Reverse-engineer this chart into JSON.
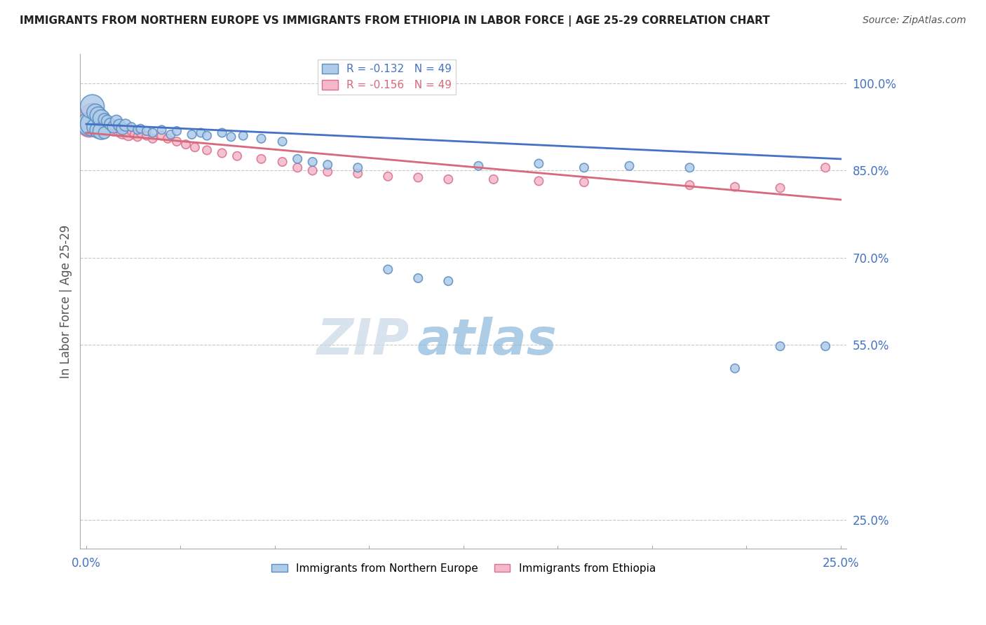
{
  "title": "IMMIGRANTS FROM NORTHERN EUROPE VS IMMIGRANTS FROM ETHIOPIA IN LABOR FORCE | AGE 25-29 CORRELATION CHART",
  "source": "Source: ZipAtlas.com",
  "ylabel": "In Labor Force | Age 25-29",
  "watermark": "ZIPatlas",
  "legend_blue_R": "-0.132",
  "legend_blue_N": "49",
  "legend_pink_R": "-0.156",
  "legend_pink_N": "49",
  "legend_blue_label": "Immigrants from Northern Europe",
  "legend_pink_label": "Immigrants from Ethiopia",
  "blue_face": "#aecce8",
  "blue_edge": "#5b8ec4",
  "pink_face": "#f4b8c8",
  "pink_edge": "#d97090",
  "blue_line": "#4472c4",
  "pink_line": "#d9687a",
  "grid_color": "#c8c8c8",
  "background": "#ffffff",
  "title_color": "#222222",
  "source_color": "#555555",
  "axis_label_color": "#4472c4",
  "ylabel_color": "#555555",
  "blue_scatter_x": [
    0.001,
    0.002,
    0.002,
    0.003,
    0.003,
    0.004,
    0.004,
    0.005,
    0.005,
    0.006,
    0.006,
    0.007,
    0.008,
    0.009,
    0.01,
    0.011,
    0.012,
    0.013,
    0.015,
    0.017,
    0.018,
    0.02,
    0.022,
    0.025,
    0.028,
    0.03,
    0.035,
    0.038,
    0.04,
    0.045,
    0.048,
    0.052,
    0.058,
    0.065,
    0.07,
    0.075,
    0.08,
    0.09,
    0.1,
    0.11,
    0.12,
    0.13,
    0.15,
    0.165,
    0.18,
    0.2,
    0.215,
    0.23,
    0.245
  ],
  "blue_scatter_y": [
    0.93,
    0.93,
    0.96,
    0.95,
    0.925,
    0.945,
    0.92,
    0.94,
    0.918,
    0.938,
    0.915,
    0.935,
    0.93,
    0.925,
    0.935,
    0.928,
    0.922,
    0.928,
    0.925,
    0.92,
    0.922,
    0.918,
    0.915,
    0.92,
    0.912,
    0.918,
    0.912,
    0.915,
    0.91,
    0.915,
    0.908,
    0.91,
    0.905,
    0.9,
    0.87,
    0.865,
    0.86,
    0.855,
    0.68,
    0.665,
    0.66,
    0.858,
    0.862,
    0.855,
    0.858,
    0.855,
    0.51,
    0.548,
    0.548
  ],
  "pink_scatter_x": [
    0.001,
    0.001,
    0.002,
    0.002,
    0.003,
    0.003,
    0.004,
    0.004,
    0.005,
    0.006,
    0.006,
    0.007,
    0.008,
    0.009,
    0.01,
    0.011,
    0.012,
    0.013,
    0.014,
    0.015,
    0.016,
    0.017,
    0.018,
    0.02,
    0.022,
    0.025,
    0.027,
    0.03,
    0.033,
    0.036,
    0.04,
    0.045,
    0.05,
    0.058,
    0.065,
    0.07,
    0.075,
    0.08,
    0.09,
    0.1,
    0.11,
    0.12,
    0.135,
    0.15,
    0.165,
    0.2,
    0.215,
    0.23,
    0.245
  ],
  "pink_scatter_y": [
    0.928,
    0.938,
    0.945,
    0.932,
    0.94,
    0.928,
    0.935,
    0.922,
    0.93,
    0.938,
    0.92,
    0.928,
    0.925,
    0.92,
    0.925,
    0.918,
    0.915,
    0.92,
    0.912,
    0.918,
    0.912,
    0.908,
    0.915,
    0.91,
    0.905,
    0.91,
    0.905,
    0.9,
    0.895,
    0.89,
    0.885,
    0.88,
    0.875,
    0.87,
    0.865,
    0.855,
    0.85,
    0.848,
    0.845,
    0.84,
    0.838,
    0.835,
    0.835,
    0.832,
    0.83,
    0.825,
    0.822,
    0.82,
    0.855
  ],
  "blue_line_x0": 0.0,
  "blue_line_x1": 0.25,
  "blue_line_y0": 0.93,
  "blue_line_y1": 0.87,
  "pink_line_x0": 0.0,
  "pink_line_x1": 0.25,
  "pink_line_y0": 0.915,
  "pink_line_y1": 0.8,
  "xlim": [
    0.0,
    0.25
  ],
  "ylim": [
    0.2,
    1.05
  ],
  "yticks": [
    0.25,
    0.55,
    0.7,
    0.85,
    1.0
  ],
  "ytick_labels": [
    "25.0%",
    "55.0%",
    "70.0%",
    "85.0%",
    "100.0%"
  ],
  "xticks": [
    0.0,
    0.25
  ],
  "xtick_labels": [
    "0.0%",
    "25.0%"
  ]
}
